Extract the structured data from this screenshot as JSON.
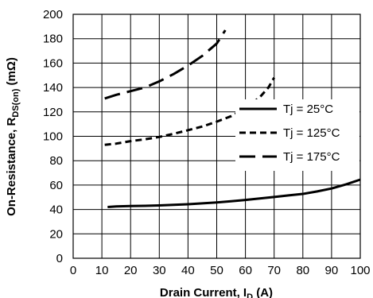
{
  "chart_data": {
    "type": "line",
    "title": "",
    "xlabel": {
      "main": "Drain Current, I",
      "sub": "D",
      "unit": " (A)"
    },
    "ylabel": {
      "main": "On-Resistance, R",
      "sub": "DS(on)",
      "unit": " (mΩ)"
    },
    "xlim": [
      0,
      100
    ],
    "ylim": [
      0,
      200
    ],
    "xticks": [
      "0",
      "10",
      "20",
      "30",
      "40",
      "50",
      "60",
      "70",
      "80",
      "90",
      "100"
    ],
    "yticks": [
      "0",
      "20",
      "40",
      "60",
      "80",
      "100",
      "120",
      "140",
      "160",
      "180",
      "200"
    ],
    "grid": true,
    "legend_position": "right",
    "series": [
      {
        "name": "Tj = 25°C",
        "style": "solid",
        "color": "#000000",
        "points": [
          [
            12,
            42
          ],
          [
            15,
            42.5
          ],
          [
            20,
            42.8
          ],
          [
            25,
            43
          ],
          [
            30,
            43.3
          ],
          [
            35,
            43.8
          ],
          [
            40,
            44.3
          ],
          [
            45,
            45
          ],
          [
            50,
            45.8
          ],
          [
            55,
            46.8
          ],
          [
            60,
            47.8
          ],
          [
            65,
            49
          ],
          [
            70,
            50.2
          ],
          [
            75,
            51.5
          ],
          [
            80,
            52.8
          ],
          [
            85,
            54.8
          ],
          [
            90,
            57.2
          ],
          [
            95,
            60.5
          ],
          [
            100,
            64.5
          ]
        ]
      },
      {
        "name": "Tj = 125°C",
        "style": "dash",
        "color": "#000000",
        "points": [
          [
            11,
            93
          ],
          [
            15,
            94
          ],
          [
            20,
            96
          ],
          [
            25,
            97.5
          ],
          [
            30,
            99.5
          ],
          [
            35,
            102
          ],
          [
            40,
            105
          ],
          [
            45,
            108
          ],
          [
            50,
            112
          ],
          [
            55,
            116.5
          ],
          [
            60,
            123
          ],
          [
            65,
            132
          ],
          [
            68,
            140
          ],
          [
            70,
            148
          ]
        ]
      },
      {
        "name": "Tj = 175°C",
        "style": "longdash",
        "color": "#000000",
        "points": [
          [
            11,
            131
          ],
          [
            15,
            134
          ],
          [
            20,
            137
          ],
          [
            25,
            140
          ],
          [
            30,
            145
          ],
          [
            35,
            151
          ],
          [
            40,
            158
          ],
          [
            45,
            166
          ],
          [
            50,
            176
          ],
          [
            53,
            187
          ]
        ]
      }
    ]
  }
}
